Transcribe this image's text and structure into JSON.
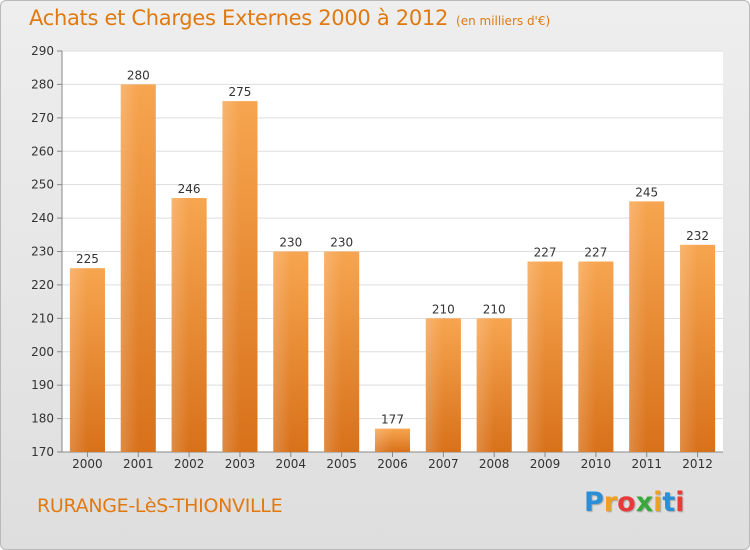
{
  "header": {
    "title": "Achats et Charges Externes 2000 à 2012",
    "subtitle": "(en milliers d'€)"
  },
  "footer": {
    "location": "RURANGE-LèS-THIONVILLE",
    "logo_text": "Proxiti",
    "logo_colors": [
      "#2a8fd6",
      "#f0a020",
      "#e83a3a",
      "#3aa83a",
      "#f0a020",
      "#2a8fd6",
      "#e83a3a"
    ]
  },
  "chart_data": {
    "type": "bar",
    "title": "Achats et Charges Externes 2000 à 2012",
    "subtitle": "(en milliers d'€)",
    "categories": [
      "2000",
      "2001",
      "2002",
      "2003",
      "2004",
      "2005",
      "2006",
      "2007",
      "2008",
      "2009",
      "2010",
      "2011",
      "2012"
    ],
    "values": [
      225,
      280,
      246,
      275,
      230,
      230,
      177,
      210,
      210,
      227,
      227,
      245,
      232
    ],
    "xlabel": "",
    "ylabel": "",
    "ylim": [
      170,
      290
    ],
    "yticks": [
      170,
      180,
      190,
      200,
      210,
      220,
      230,
      240,
      250,
      260,
      270,
      280,
      290
    ],
    "grid": true,
    "legend": "none",
    "bar_color": "#f08a24"
  }
}
